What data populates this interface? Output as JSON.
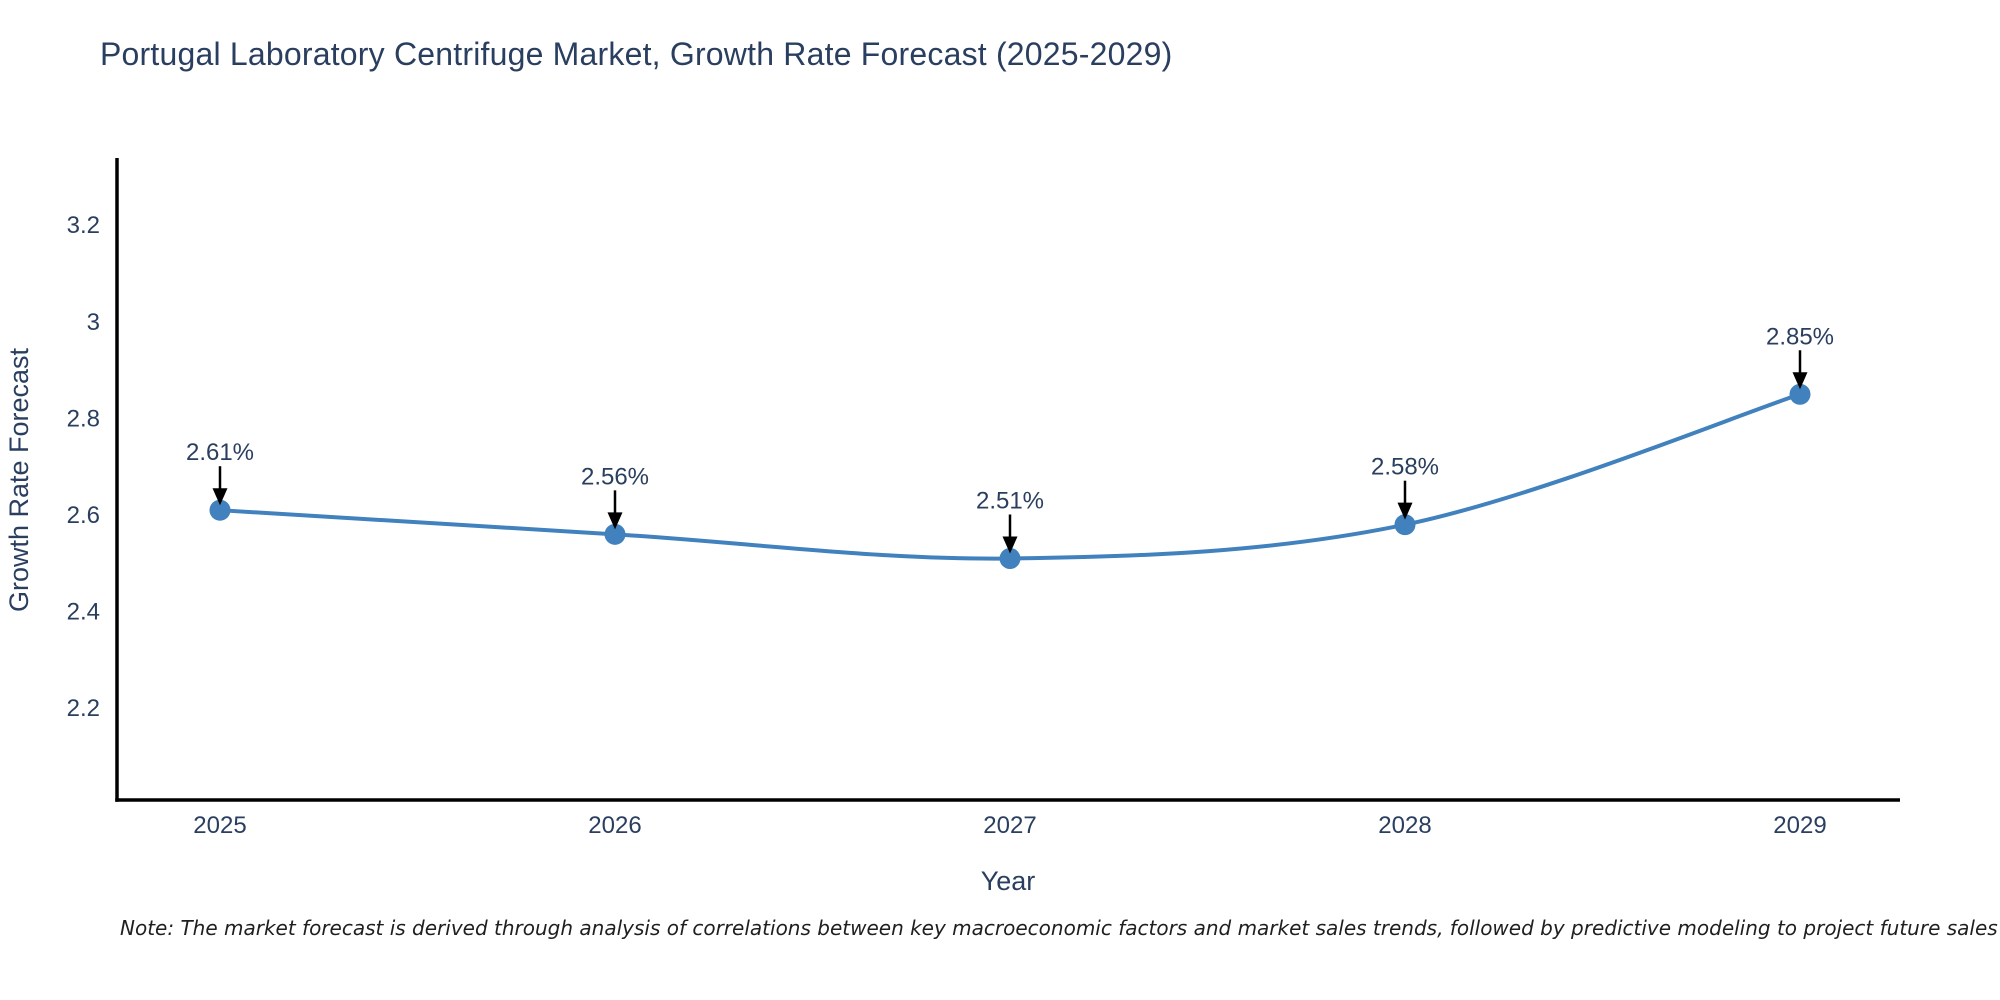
{
  "page": {
    "title": "Portugal Laboratory Centrifuge Market, Growth Rate Forecast (2025-2029)",
    "note": "Note: The market forecast is derived through analysis of correlations between key macroeconomic factors and market sales trends, followed by predictive modeling to project future sales"
  },
  "chart_data": {
    "type": "line",
    "title": "Portugal Laboratory Centrifuge Market, Growth Rate Forecast (2025-2029)",
    "xlabel": "Year",
    "ylabel": "Growth Rate Forecast",
    "categories": [
      "2025",
      "2026",
      "2027",
      "2028",
      "2029"
    ],
    "series": [
      {
        "name": "Growth Rate Forecast",
        "values": [
          2.61,
          2.56,
          2.51,
          2.58,
          2.85
        ],
        "point_labels": [
          "2.61%",
          "2.56%",
          "2.51%",
          "2.58%",
          "2.85%"
        ]
      }
    ],
    "yticks": [
      "2.2",
      "2.4",
      "2.6",
      "2.8",
      "3",
      "3.2"
    ],
    "ytick_values": [
      2.2,
      2.4,
      2.6,
      2.8,
      3.0,
      3.2
    ],
    "ylim": [
      2.01,
      3.335
    ],
    "grid": false,
    "legend": "none",
    "line_shape": "spline",
    "annotations_have_arrows": true,
    "colors": {
      "line": "#4181bd",
      "marker": "#4181bd",
      "arrow": "#000000",
      "axis": "#000000",
      "text": "#2a3f5f"
    }
  }
}
